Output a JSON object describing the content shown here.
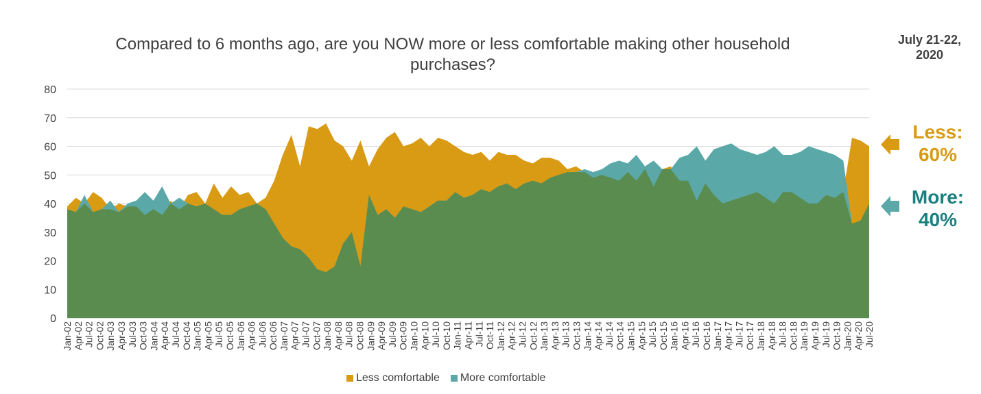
{
  "title": "Compared to 6 months ago, are you NOW more or less comfortable making other household purchases?",
  "date_label_line1": "July 21-22,",
  "date_label_line2": "2020",
  "callouts": {
    "less_line1": "Less:",
    "less_line2": "60%",
    "more_line1": "More:",
    "more_line2": "40%"
  },
  "colors": {
    "less": "#D99A14",
    "more": "#5BA8A8",
    "overlap": "#5A8C50",
    "grid": "#D9D9D9",
    "text": "#404040"
  },
  "chart_data": {
    "type": "area",
    "ylim": [
      0,
      80
    ],
    "yticks": [
      0,
      10,
      20,
      30,
      40,
      50,
      60,
      70,
      80
    ],
    "xlabels": [
      "Jan-02",
      "Apr-02",
      "Jul-02",
      "Oct-02",
      "Jan-03",
      "Apr-03",
      "Jul-03",
      "Oct-03",
      "Jan-04",
      "Apr-04",
      "Jul-04",
      "Oct-04",
      "Jan-05",
      "Apr-05",
      "Jul-05",
      "Oct-05",
      "Jan-06",
      "Apr-06",
      "Jul-06",
      "Oct-06",
      "Jan-07",
      "Apr-07",
      "Jul-07",
      "Oct-07",
      "Jan-08",
      "Apr-08",
      "Jul-08",
      "Oct-08",
      "Jan-09",
      "Apr-09",
      "Jul-09",
      "Oct-09",
      "Jan-10",
      "Apr-10",
      "Jul-10",
      "Oct-10",
      "Jan-11",
      "Apr-11",
      "Jul-11",
      "Oct-11",
      "Jan-12",
      "Apr-12",
      "Jul-12",
      "Oct-12",
      "Jan-13",
      "Apr-13",
      "Jul-13",
      "Oct-13",
      "Jan-14",
      "Apr-14",
      "Jul-14",
      "Oct-14",
      "Jan-15",
      "Apr-15",
      "Jul-15",
      "Oct-15",
      "Jan-16",
      "Apr-16",
      "Jul-16",
      "Oct-16",
      "Jan-17",
      "Apr-17",
      "Jul-17",
      "Oct-17",
      "Jan-18",
      "Apr-18",
      "Jul-18",
      "Oct-18",
      "Jan-19",
      "Apr-19",
      "Jul-19",
      "Oct-19",
      "Jan-20",
      "Apr-20",
      "Jul-20"
    ],
    "series": [
      {
        "name": "Less comfortable",
        "values": [
          39,
          42,
          40,
          44,
          42,
          38,
          40,
          39,
          39,
          36,
          38,
          36,
          41,
          38,
          43,
          44,
          40,
          47,
          42,
          46,
          43,
          44,
          40,
          42,
          48,
          57,
          64,
          53,
          67,
          66,
          68,
          62,
          60,
          55,
          62,
          53,
          59,
          63,
          65,
          60,
          61,
          63,
          60,
          63,
          62,
          60,
          58,
          57,
          58,
          55,
          58,
          57,
          57,
          55,
          54,
          56,
          56,
          55,
          52,
          53,
          51,
          49,
          50,
          49,
          48,
          51,
          48,
          52,
          46,
          52,
          53,
          48,
          48,
          41,
          47,
          43,
          40,
          41,
          42,
          43,
          44,
          42,
          40,
          44,
          44,
          42,
          40,
          40,
          43,
          42,
          44,
          63,
          62,
          60
        ]
      },
      {
        "name": "More comfortable",
        "values": [
          38,
          37,
          43,
          37,
          38,
          41,
          37,
          40,
          41,
          44,
          41,
          46,
          40,
          42,
          40,
          39,
          40,
          38,
          36,
          36,
          38,
          39,
          40,
          38,
          33,
          28,
          25,
          24,
          21,
          17,
          16,
          18,
          26,
          30,
          18,
          43,
          36,
          38,
          35,
          39,
          38,
          37,
          39,
          41,
          41,
          44,
          42,
          43,
          45,
          44,
          46,
          47,
          45,
          47,
          48,
          47,
          49,
          50,
          51,
          51,
          52,
          51,
          52,
          54,
          55,
          54,
          57,
          53,
          55,
          52,
          52,
          56,
          57,
          60,
          55,
          59,
          60,
          61,
          59,
          58,
          57,
          58,
          60,
          57,
          57,
          58,
          60,
          59,
          58,
          57,
          55,
          33,
          34,
          40
        ]
      }
    ],
    "legend": [
      "Less comfortable",
      "More comfortable"
    ],
    "legend_position": "bottom",
    "grid": true
  }
}
